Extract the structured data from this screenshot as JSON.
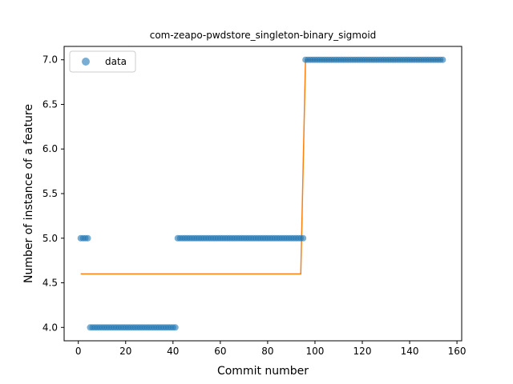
{
  "chart_data": {
    "type": "scatter",
    "title": "com-zeapo-pwdstore_singleton-binary_sigmoid",
    "xlabel": "Commit number",
    "ylabel": "Number of instance of a feature",
    "xlim": [
      -6,
      162
    ],
    "ylim": [
      3.85,
      7.15
    ],
    "xticks": [
      0,
      20,
      40,
      60,
      80,
      100,
      120,
      140,
      160
    ],
    "yticks": [
      4.0,
      4.5,
      5.0,
      5.5,
      6.0,
      6.5,
      7.0
    ],
    "ytick_labels": [
      "4.0",
      "4.5",
      "5.0",
      "5.5",
      "6.0",
      "6.5",
      "7.0"
    ],
    "grid": false,
    "legend": {
      "position": "top-left",
      "entries": [
        "data"
      ]
    },
    "colors": {
      "data": "#1f77b4",
      "fit": "#ff7f0e"
    },
    "series": [
      {
        "name": "data",
        "kind": "scatter",
        "segments": [
          {
            "x_start": 1,
            "x_end": 4,
            "y": 5.0
          },
          {
            "x_start": 5,
            "x_end": 41,
            "y": 4.0
          },
          {
            "x_start": 42,
            "x_end": 95,
            "y": 5.0
          },
          {
            "x_start": 96,
            "x_end": 154,
            "y": 7.0
          }
        ]
      },
      {
        "kind": "line",
        "x": [
          1,
          94,
          96,
          154
        ],
        "y": [
          4.6,
          4.6,
          7.0,
          7.0
        ]
      }
    ]
  }
}
